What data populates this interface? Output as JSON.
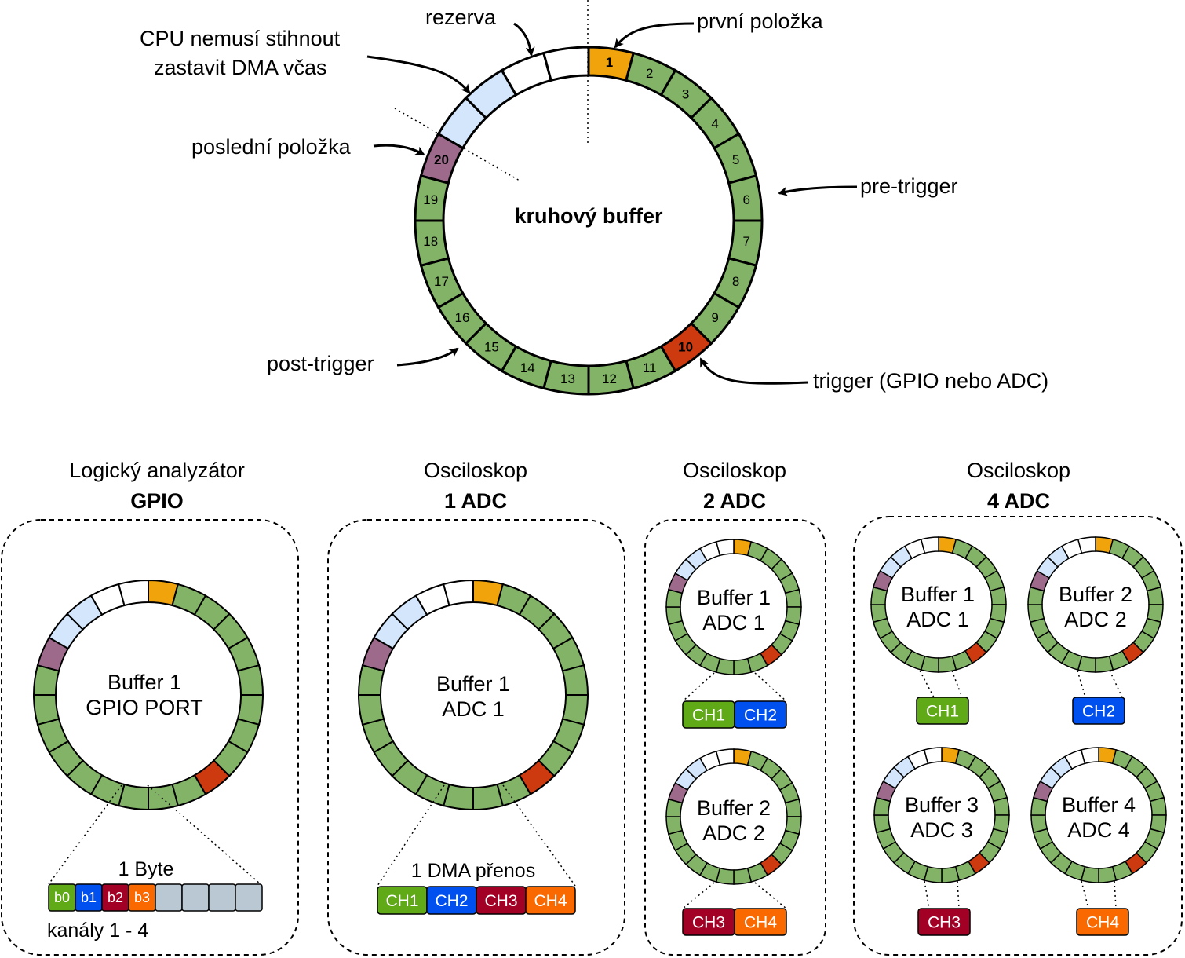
{
  "colors": {
    "green": "#82b366",
    "orange": "#f0a30a",
    "purple": "#9e6a8c",
    "light_blue": "#d3e6fb",
    "white": "#ffffff",
    "red": "#cd3a0f",
    "ch1": "#60a917",
    "ch2": "#0050ef",
    "ch3": "#a20025",
    "ch4": "#fa6800",
    "gray": "#bac8d3"
  },
  "main": {
    "center_label": "kruhový buffer",
    "segments": [
      {
        "n": "1",
        "c": "orange",
        "bold": true
      },
      {
        "n": "2",
        "c": "green"
      },
      {
        "n": "3",
        "c": "green"
      },
      {
        "n": "4",
        "c": "green"
      },
      {
        "n": "5",
        "c": "green"
      },
      {
        "n": "6",
        "c": "green"
      },
      {
        "n": "7",
        "c": "green"
      },
      {
        "n": "8",
        "c": "green"
      },
      {
        "n": "9",
        "c": "green"
      },
      {
        "n": "10",
        "c": "red",
        "bold": true,
        "white": true
      },
      {
        "n": "11",
        "c": "green"
      },
      {
        "n": "12",
        "c": "green"
      },
      {
        "n": "13",
        "c": "green"
      },
      {
        "n": "14",
        "c": "green"
      },
      {
        "n": "15",
        "c": "green"
      },
      {
        "n": "16",
        "c": "green"
      },
      {
        "n": "17",
        "c": "green"
      },
      {
        "n": "18",
        "c": "green"
      },
      {
        "n": "19",
        "c": "green"
      },
      {
        "n": "20",
        "c": "purple",
        "bold": true,
        "white": true
      },
      {
        "n": "",
        "c": "light_blue"
      },
      {
        "n": "",
        "c": "light_blue"
      },
      {
        "n": "",
        "c": "white"
      },
      {
        "n": "",
        "c": "white"
      }
    ],
    "annotations": {
      "first": "první položka",
      "reserve": "rezerva",
      "cpu_line1": "CPU nemusí stihnout",
      "cpu_line2": "zastavit DMA včas",
      "last": "poslední položka",
      "pre": "pre-trigger",
      "post": "post-trigger",
      "trigger": "trigger (GPIO nebo ADC)"
    }
  },
  "panels": [
    {
      "title": "Logický analyzátor",
      "subtitle": "GPIO",
      "buffers": [
        {
          "line1": "Buffer 1",
          "line2": "GPIO PORT"
        }
      ],
      "byte_label": "1 Byte",
      "bits": [
        {
          "label": "b0",
          "color": "ch1"
        },
        {
          "label": "b1",
          "color": "ch2"
        },
        {
          "label": "b2",
          "color": "ch3"
        },
        {
          "label": "b3",
          "color": "ch4"
        },
        {
          "label": "",
          "color": "gray"
        },
        {
          "label": "",
          "color": "gray"
        },
        {
          "label": "",
          "color": "gray"
        },
        {
          "label": "",
          "color": "gray"
        }
      ],
      "channels_label": "kanály 1 - 4"
    },
    {
      "title": "Osciloskop",
      "subtitle": "1 ADC",
      "buffers": [
        {
          "line1": "Buffer 1",
          "line2": "ADC 1"
        }
      ],
      "dma_label": "1 DMA přenos",
      "chips": [
        {
          "label": "CH1",
          "color": "ch1"
        },
        {
          "label": "CH2",
          "color": "ch2"
        },
        {
          "label": "CH3",
          "color": "ch3"
        },
        {
          "label": "CH4",
          "color": "ch4"
        }
      ]
    },
    {
      "title": "Osciloskop",
      "subtitle": "2 ADC",
      "buffers": [
        {
          "line1": "Buffer 1",
          "line2": "ADC 1",
          "chips": [
            {
              "label": "CH1",
              "color": "ch1"
            },
            {
              "label": "CH2",
              "color": "ch2"
            }
          ]
        },
        {
          "line1": "Buffer 2",
          "line2": "ADC 2",
          "chips": [
            {
              "label": "CH3",
              "color": "ch3"
            },
            {
              "label": "CH4",
              "color": "ch4"
            }
          ]
        }
      ]
    },
    {
      "title": "Osciloskop",
      "subtitle": "4 ADC",
      "buffers": [
        {
          "line1": "Buffer 1",
          "line2": "ADC 1",
          "chips": [
            {
              "label": "CH1",
              "color": "ch1"
            }
          ]
        },
        {
          "line1": "Buffer 2",
          "line2": "ADC 2",
          "chips": [
            {
              "label": "CH2",
              "color": "ch2"
            }
          ]
        },
        {
          "line1": "Buffer 3",
          "line2": "ADC 3",
          "chips": [
            {
              "label": "CH3",
              "color": "ch3"
            }
          ]
        },
        {
          "line1": "Buffer 4",
          "line2": "ADC 4",
          "chips": [
            {
              "label": "CH4",
              "color": "ch4"
            }
          ]
        }
      ]
    }
  ]
}
